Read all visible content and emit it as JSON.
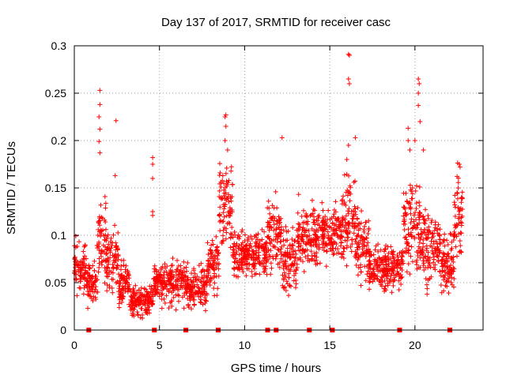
{
  "chart_data": {
    "type": "scatter",
    "title": "Day 137 of 2017, SRMTID for receiver casc",
    "xlabel": "GPS time / hours",
    "ylabel": "SRMTID / TECUs",
    "xlim": [
      0,
      24
    ],
    "ylim": [
      0,
      0.3
    ],
    "x_ticks": [
      0,
      5,
      10,
      15,
      20
    ],
    "x_tick_labels": [
      "0",
      "5",
      "10",
      "15",
      "20"
    ],
    "y_ticks": [
      0,
      0.05,
      0.1,
      0.15,
      0.2,
      0.25,
      0.3
    ],
    "y_tick_labels": [
      "0",
      "0.05",
      "0.1",
      "0.15",
      "0.2",
      "0.25",
      "0.3"
    ],
    "grid": true,
    "marker": "+",
    "color": "#ff0000",
    "series": [
      {
        "name": "SRMTID",
        "segments": [
          {
            "x0": 0.0,
            "x1": 0.7,
            "base": 0.065,
            "spread": 0.025
          },
          {
            "x0": 0.7,
            "x1": 1.3,
            "base": 0.05,
            "spread": 0.02
          },
          {
            "x0": 1.3,
            "x1": 1.9,
            "base": 0.09,
            "spread": 0.04
          },
          {
            "x0": 1.9,
            "x1": 2.6,
            "base": 0.075,
            "spread": 0.035
          },
          {
            "x0": 2.6,
            "x1": 3.3,
            "base": 0.05,
            "spread": 0.02
          },
          {
            "x0": 3.3,
            "x1": 4.6,
            "base": 0.03,
            "spread": 0.015
          },
          {
            "x0": 4.6,
            "x1": 6.6,
            "base": 0.05,
            "spread": 0.02
          },
          {
            "x0": 6.6,
            "x1": 7.8,
            "base": 0.045,
            "spread": 0.018
          },
          {
            "x0": 7.8,
            "x1": 8.5,
            "base": 0.07,
            "spread": 0.025
          },
          {
            "x0": 8.5,
            "x1": 9.3,
            "base": 0.13,
            "spread": 0.04
          },
          {
            "x0": 9.3,
            "x1": 11.3,
            "base": 0.08,
            "spread": 0.02
          },
          {
            "x0": 11.3,
            "x1": 12.2,
            "base": 0.1,
            "spread": 0.035
          },
          {
            "x0": 12.2,
            "x1": 13.1,
            "base": 0.075,
            "spread": 0.03
          },
          {
            "x0": 13.1,
            "x1": 14.3,
            "base": 0.1,
            "spread": 0.03
          },
          {
            "x0": 14.3,
            "x1": 15.7,
            "base": 0.1,
            "spread": 0.025
          },
          {
            "x0": 15.7,
            "x1": 16.5,
            "base": 0.115,
            "spread": 0.04
          },
          {
            "x0": 16.5,
            "x1": 17.3,
            "base": 0.09,
            "spread": 0.03
          },
          {
            "x0": 17.3,
            "x1": 19.3,
            "base": 0.065,
            "spread": 0.02
          },
          {
            "x0": 19.3,
            "x1": 20.3,
            "base": 0.11,
            "spread": 0.045
          },
          {
            "x0": 20.3,
            "x1": 21.5,
            "base": 0.09,
            "spread": 0.035
          },
          {
            "x0": 21.5,
            "x1": 22.3,
            "base": 0.07,
            "spread": 0.025
          },
          {
            "x0": 22.3,
            "x1": 22.8,
            "base": 0.12,
            "spread": 0.04
          }
        ],
        "spikes": [
          {
            "x": 1.5,
            "y": 0.253
          },
          {
            "x": 1.5,
            "y": 0.238
          },
          {
            "x": 1.45,
            "y": 0.225
          },
          {
            "x": 1.5,
            "y": 0.212
          },
          {
            "x": 1.45,
            "y": 0.199
          },
          {
            "x": 1.5,
            "y": 0.187
          },
          {
            "x": 2.45,
            "y": 0.221
          },
          {
            "x": 2.4,
            "y": 0.163
          },
          {
            "x": 4.6,
            "y": 0.182
          },
          {
            "x": 4.6,
            "y": 0.175
          },
          {
            "x": 4.6,
            "y": 0.16
          },
          {
            "x": 4.6,
            "y": 0.125
          },
          {
            "x": 4.6,
            "y": 0.121
          },
          {
            "x": 8.9,
            "y": 0.227
          },
          {
            "x": 8.85,
            "y": 0.225
          },
          {
            "x": 8.9,
            "y": 0.215
          },
          {
            "x": 8.85,
            "y": 0.2
          },
          {
            "x": 9.0,
            "y": 0.19
          },
          {
            "x": 12.2,
            "y": 0.203
          },
          {
            "x": 16.1,
            "y": 0.291
          },
          {
            "x": 16.15,
            "y": 0.29
          },
          {
            "x": 16.1,
            "y": 0.265
          },
          {
            "x": 16.15,
            "y": 0.26
          },
          {
            "x": 16.5,
            "y": 0.203
          },
          {
            "x": 16.1,
            "y": 0.195
          },
          {
            "x": 16.0,
            "y": 0.18
          },
          {
            "x": 19.6,
            "y": 0.213
          },
          {
            "x": 19.6,
            "y": 0.2
          },
          {
            "x": 19.7,
            "y": 0.19
          },
          {
            "x": 20.2,
            "y": 0.265
          },
          {
            "x": 20.25,
            "y": 0.26
          },
          {
            "x": 20.2,
            "y": 0.25
          },
          {
            "x": 20.2,
            "y": 0.237
          },
          {
            "x": 20.3,
            "y": 0.22
          },
          {
            "x": 20.0,
            "y": 0.2
          },
          {
            "x": 20.5,
            "y": 0.19
          },
          {
            "x": 22.6,
            "y": 0.175
          },
          {
            "x": 22.65,
            "y": 0.172
          }
        ]
      }
    ],
    "gap_markers_x": [
      0.85,
      4.7,
      6.55,
      8.45,
      11.35,
      11.85,
      13.8,
      15.15,
      19.1,
      22.05
    ]
  }
}
